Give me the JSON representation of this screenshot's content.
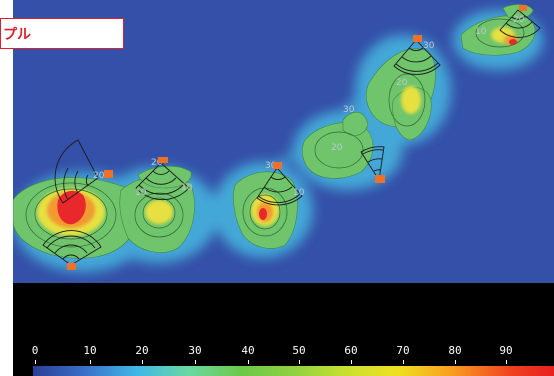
{
  "map": {
    "title_fragment": "プル",
    "colors": {
      "sea": "#3450a8",
      "accent_red": "#e0202a",
      "station_marker": "#f07028"
    },
    "contour_labels": [
      "20",
      "20",
      "10",
      "10",
      "30",
      "10",
      "20",
      "30",
      "20",
      "30",
      "20",
      "10"
    ],
    "station_icon": "radar-station-icon"
  },
  "legend": {
    "ticks": [
      "0",
      "10",
      "20",
      "30",
      "40",
      "50",
      "60",
      "70",
      "80",
      "90"
    ]
  }
}
